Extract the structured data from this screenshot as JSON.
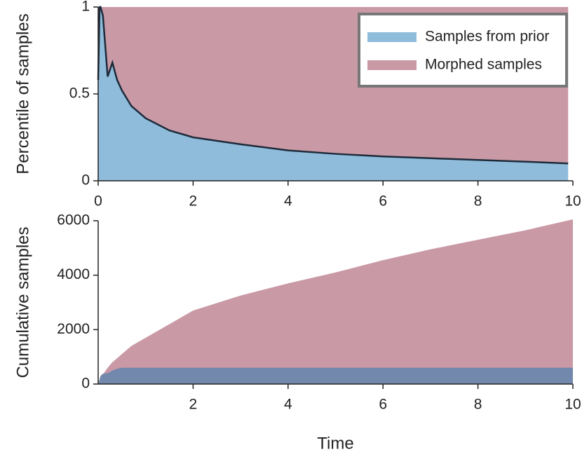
{
  "chart_data": [
    {
      "type": "stacked-area",
      "ylabel": "Percentile of samples",
      "x": [
        0,
        0.03,
        0.05,
        0.1,
        0.2,
        0.3,
        0.4,
        0.5,
        0.7,
        1,
        1.5,
        2,
        3,
        4,
        5,
        6,
        7,
        8,
        9,
        9.9
      ],
      "series": [
        {
          "name": "Samples from prior",
          "color": "#8fbcdb",
          "values": [
            0.58,
            1,
            1,
            0.95,
            0.6,
            0.68,
            0.58,
            0.52,
            0.43,
            0.36,
            0.29,
            0.25,
            0.21,
            0.175,
            0.155,
            0.14,
            0.13,
            0.12,
            0.11,
            0.1
          ]
        },
        {
          "name": "Morphed samples",
          "color": "#c999a6",
          "values": [
            0.42,
            0,
            0,
            0.05,
            0.4,
            0.32,
            0.42,
            0.48,
            0.57,
            0.64,
            0.71,
            0.75,
            0.79,
            0.825,
            0.845,
            0.86,
            0.87,
            0.88,
            0.89,
            0.9
          ]
        }
      ],
      "xlim": [
        0,
        10
      ],
      "xticks": [
        0,
        2,
        4,
        6,
        8,
        10
      ],
      "ylim": [
        0,
        1
      ],
      "yticks": [
        0,
        0.5,
        1
      ],
      "legend": "upper right"
    },
    {
      "type": "area",
      "xlabel": "Time",
      "ylabel": "Cumulative samples",
      "x": [
        0,
        0.05,
        0.1,
        0.2,
        0.3,
        0.4,
        0.5,
        0.7,
        1,
        2,
        3,
        4,
        5,
        6,
        7,
        8,
        9,
        10
      ],
      "series": [
        {
          "color": "#c999a6",
          "values": [
            0,
            200,
            350,
            600,
            800,
            950,
            1100,
            1400,
            1700,
            2700,
            3250,
            3700,
            4100,
            4550,
            4950,
            5300,
            5650,
            6050
          ]
        },
        {
          "color": "#7388ad",
          "values": [
            0,
            300,
            380,
            400,
            500,
            560,
            600,
            600,
            600,
            600,
            600,
            600,
            600,
            600,
            600,
            600,
            600,
            600
          ]
        }
      ],
      "xlim": [
        0,
        10
      ],
      "xticks": [
        2,
        4,
        6,
        8,
        10
      ],
      "ylim": [
        0,
        6000
      ],
      "yticks": [
        0,
        2000,
        4000,
        6000
      ]
    }
  ]
}
